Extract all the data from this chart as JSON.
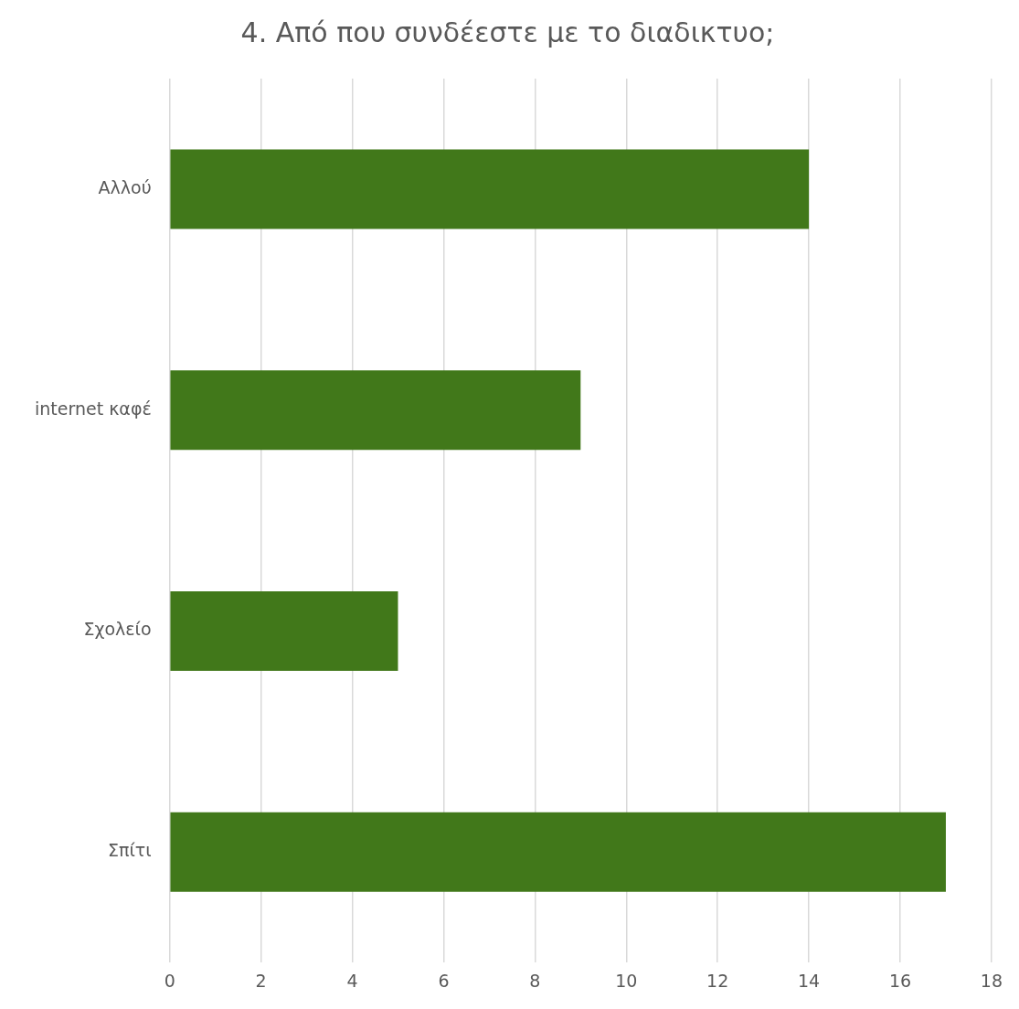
{
  "chart_data": {
    "type": "bar",
    "orientation": "horizontal",
    "title": "4. Από που συνδέεστε με το διαδικτυο;",
    "categories": [
      "Αλλού",
      "internet καφέ",
      "Σχολείο",
      "Σπίτι"
    ],
    "values": [
      14,
      9,
      5,
      17
    ],
    "color": "#41781a",
    "xlim": [
      0,
      18
    ],
    "xticks": [
      0,
      2,
      4,
      6,
      8,
      10,
      12,
      14,
      16,
      18
    ],
    "grid": "x",
    "legend": false
  }
}
